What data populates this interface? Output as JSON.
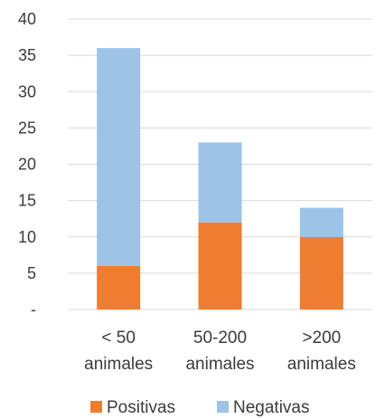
{
  "chart_data": {
    "type": "bar",
    "stacked": true,
    "categories": [
      [
        "< 50",
        "animales"
      ],
      [
        "50-200",
        "animales"
      ],
      [
        ">200",
        "animales"
      ]
    ],
    "series": [
      {
        "name": "Positivas",
        "values": [
          6,
          12,
          10
        ],
        "color": "#ED7D31"
      },
      {
        "name": "Negativas",
        "values": [
          30,
          11,
          4
        ],
        "color": "#9DC3E6"
      }
    ],
    "ylim": [
      0,
      40
    ],
    "yticks": [
      0,
      5,
      10,
      15,
      20,
      25,
      30,
      35,
      40
    ],
    "ytick_labels": [
      "-",
      "5",
      "10",
      "15",
      "20",
      "25",
      "30",
      "35",
      "40"
    ],
    "grid": true,
    "legend_position": "bottom",
    "title": "",
    "xlabel": "",
    "ylabel": ""
  }
}
